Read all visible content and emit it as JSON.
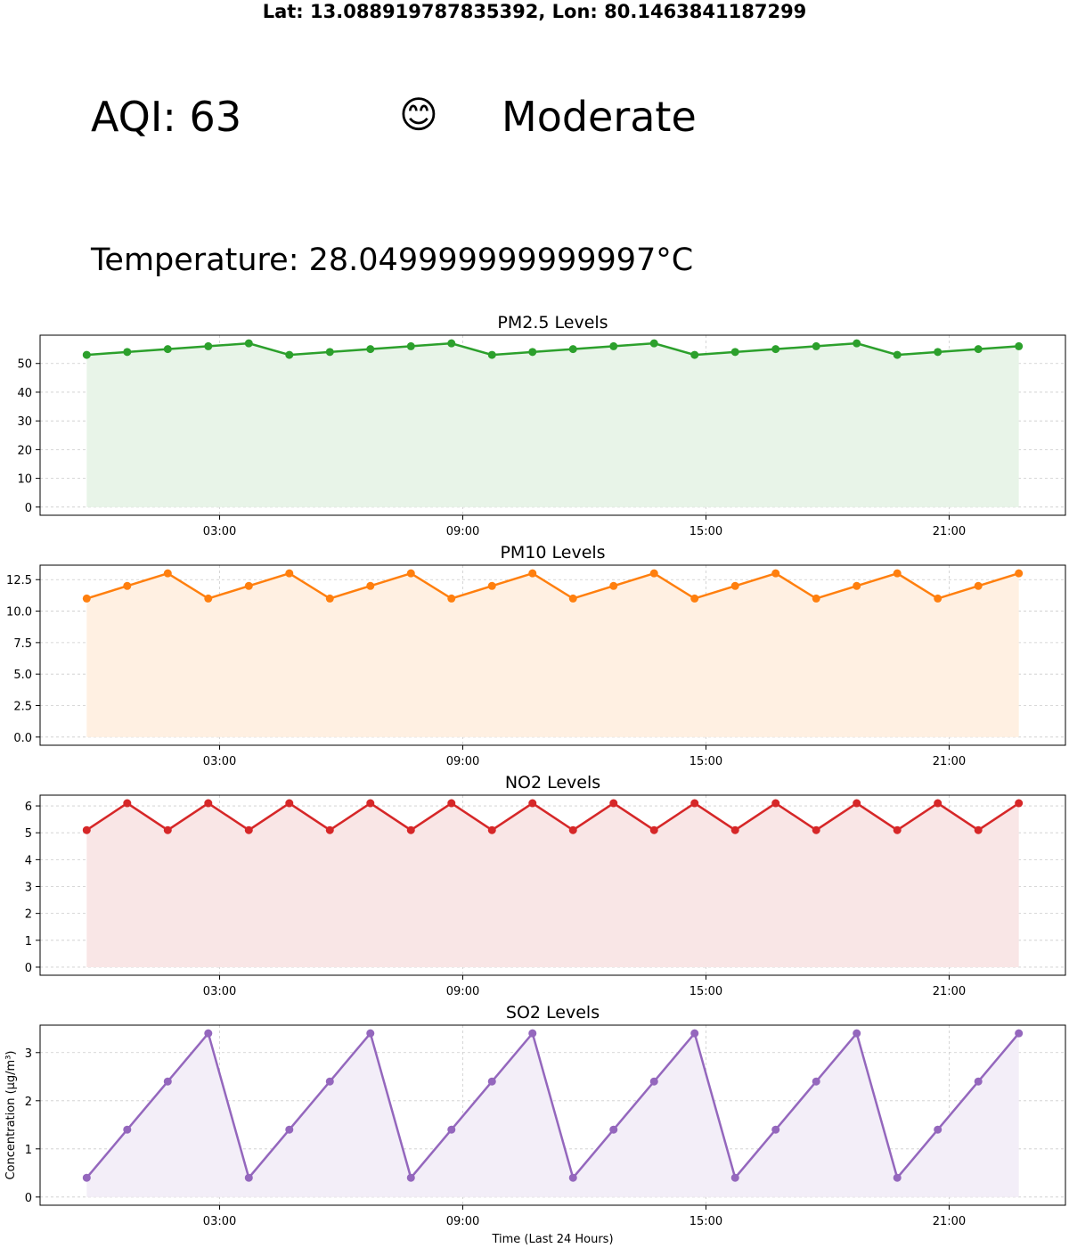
{
  "header": {
    "coordinates": "Lat: 13.088919787835392, Lon: 80.1463841187299",
    "aqi_label": "AQI: 63",
    "emoji": "😊",
    "category": "Moderate",
    "temperature": "Temperature: 28.049999999999997°C"
  },
  "chart_data": [
    {
      "type": "area",
      "title": "PM2.5 Levels",
      "color": "#2ca02c",
      "fill": "#e8f4e8",
      "x_ticks": [
        "03:00",
        "09:00",
        "15:00",
        "21:00"
      ],
      "x_hours": [
        0,
        1,
        2,
        3,
        4,
        5,
        6,
        7,
        8,
        9,
        10,
        11,
        12,
        13,
        14,
        15,
        16,
        17,
        18,
        19,
        20,
        21,
        22,
        23
      ],
      "values": [
        53,
        54,
        55,
        56,
        57,
        53,
        54,
        55,
        56,
        57,
        53,
        54,
        55,
        56,
        57,
        53,
        54,
        55,
        56,
        57,
        53,
        54,
        55,
        56
      ],
      "y_ticks": [
        0,
        10,
        20,
        30,
        40,
        50
      ],
      "ylim": [
        -2.85,
        59.85
      ],
      "xlabel": "",
      "ylabel": "",
      "grid": true
    },
    {
      "type": "area",
      "title": "PM10 Levels",
      "color": "#ff7f0e",
      "fill": "#fff0e2",
      "x_ticks": [
        "03:00",
        "09:00",
        "15:00",
        "21:00"
      ],
      "x_hours": [
        0,
        1,
        2,
        3,
        4,
        5,
        6,
        7,
        8,
        9,
        10,
        11,
        12,
        13,
        14,
        15,
        16,
        17,
        18,
        19,
        20,
        21,
        22,
        23
      ],
      "values": [
        11,
        12,
        13,
        11,
        12,
        13,
        11,
        12,
        13,
        11,
        12,
        13,
        11,
        12,
        13,
        11,
        12,
        13,
        11,
        12,
        13,
        11,
        12,
        13
      ],
      "y_ticks": [
        "0.0",
        "2.5",
        "5.0",
        "7.5",
        "10.0",
        "12.5"
      ],
      "ylim": [
        -0.65,
        13.65
      ],
      "xlabel": "",
      "ylabel": "",
      "grid": true
    },
    {
      "type": "area",
      "title": "NO2 Levels",
      "color": "#d62728",
      "fill": "#f9e6e6",
      "x_ticks": [
        "03:00",
        "09:00",
        "15:00",
        "21:00"
      ],
      "x_hours": [
        0,
        1,
        2,
        3,
        4,
        5,
        6,
        7,
        8,
        9,
        10,
        11,
        12,
        13,
        14,
        15,
        16,
        17,
        18,
        19,
        20,
        21,
        22,
        23
      ],
      "values": [
        5.1,
        6.1,
        5.1,
        6.1,
        5.1,
        6.1,
        5.1,
        6.1,
        5.1,
        6.1,
        5.1,
        6.1,
        5.1,
        6.1,
        5.1,
        6.1,
        5.1,
        6.1,
        5.1,
        6.1,
        5.1,
        6.1,
        5.1,
        6.1
      ],
      "y_ticks": [
        0,
        1,
        2,
        3,
        4,
        5,
        6
      ],
      "ylim": [
        -0.3,
        6.4
      ],
      "xlabel": "",
      "ylabel": "",
      "grid": true
    },
    {
      "type": "area",
      "title": "SO2 Levels",
      "color": "#9467bd",
      "fill": "#f3eef8",
      "x_ticks": [
        "03:00",
        "09:00",
        "15:00",
        "21:00"
      ],
      "x_hours": [
        0,
        1,
        2,
        3,
        4,
        5,
        6,
        7,
        8,
        9,
        10,
        11,
        12,
        13,
        14,
        15,
        16,
        17,
        18,
        19,
        20,
        21,
        22,
        23
      ],
      "values": [
        0.4,
        1.4,
        2.4,
        3.4,
        0.4,
        1.4,
        2.4,
        3.4,
        0.4,
        1.4,
        2.4,
        3.4,
        0.4,
        1.4,
        2.4,
        3.4,
        0.4,
        1.4,
        2.4,
        3.4,
        0.4,
        1.4,
        2.4,
        3.4
      ],
      "y_ticks": [
        0,
        1,
        2,
        3
      ],
      "ylim": [
        -0.17,
        3.57
      ],
      "xlabel": "Time (Last 24 Hours)",
      "ylabel": "Concentration (µg/m³)",
      "grid": true
    }
  ]
}
